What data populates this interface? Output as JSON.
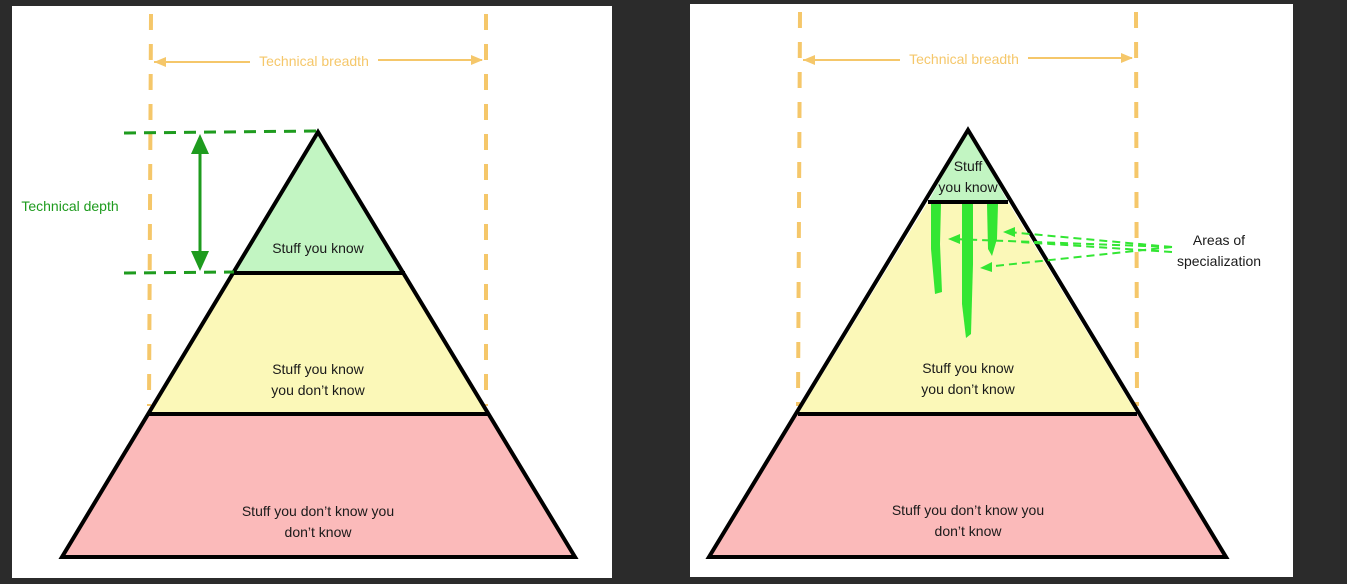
{
  "left": {
    "breadth_label": "Technical breadth",
    "depth_label": "Technical depth",
    "tier_top": "Stuff you know",
    "tier_middle_line1": "Stuff you know",
    "tier_middle_line2": "you don’t know",
    "tier_bottom_line1": "Stuff you don’t know you",
    "tier_bottom_line2": "don’t know"
  },
  "right": {
    "breadth_label": "Technical breadth",
    "tier_top_line1": "Stuff",
    "tier_top_line2": "you know",
    "tier_middle_line1": "Stuff you know",
    "tier_middle_line2": "you don’t know",
    "tier_bottom_line1": "Stuff you don’t know you",
    "tier_bottom_line2": "don’t know",
    "callout_line1": "Areas of",
    "callout_line2": "specialization"
  },
  "colors": {
    "known": "#c2f5c2",
    "known_unknowns": "#fbf8b8",
    "unknown_unknowns": "#fbbaba",
    "breadth_guide": "#f5c76a",
    "depth_marker": "#1e9b1e",
    "specialization": "#33e633"
  }
}
